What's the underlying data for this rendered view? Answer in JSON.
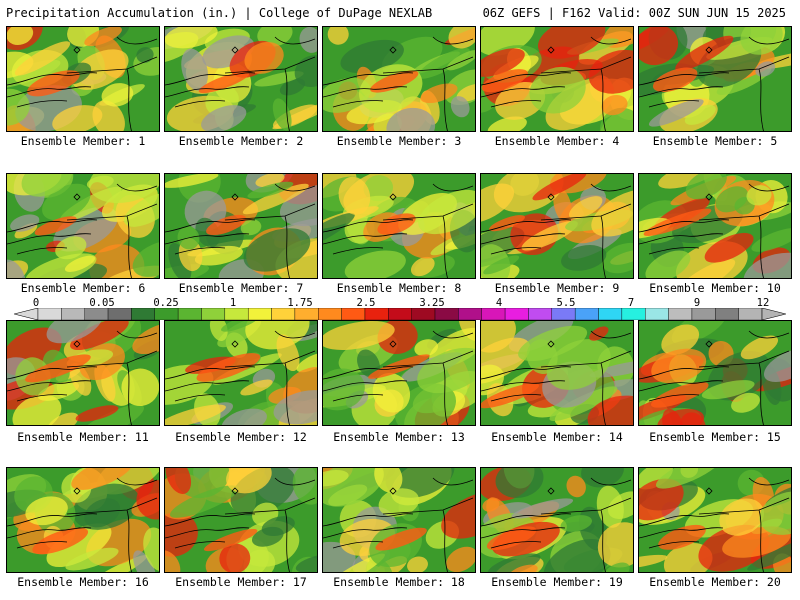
{
  "header": {
    "title_left": "Precipitation Accumulation (in.) | College of DuPage NEXLAB",
    "title_right": "06Z GEFS | F162 Valid: 00Z SUN JUN 15 2025"
  },
  "panels": [
    {
      "label": "Ensemble Member: 1"
    },
    {
      "label": "Ensemble Member: 2"
    },
    {
      "label": "Ensemble Member: 3"
    },
    {
      "label": "Ensemble Member: 4"
    },
    {
      "label": "Ensemble Member: 5"
    },
    {
      "label": "Ensemble Member: 6"
    },
    {
      "label": "Ensemble Member: 7"
    },
    {
      "label": "Ensemble Member: 8"
    },
    {
      "label": "Ensemble Member: 9"
    },
    {
      "label": "Ensemble Member: 10"
    },
    {
      "label": "Ensemble Member: 11"
    },
    {
      "label": "Ensemble Member: 12"
    },
    {
      "label": "Ensemble Member: 13"
    },
    {
      "label": "Ensemble Member: 14"
    },
    {
      "label": "Ensemble Member: 15"
    },
    {
      "label": "Ensemble Member: 16"
    },
    {
      "label": "Ensemble Member: 17"
    },
    {
      "label": "Ensemble Member: 18"
    },
    {
      "label": "Ensemble Member: 19"
    },
    {
      "label": "Ensemble Member: 20"
    }
  ],
  "colorbar": {
    "tick_labels": [
      "0",
      "0.05",
      "0.25",
      "1",
      "1.75",
      "2.5",
      "3.25",
      "4",
      "5.5",
      "7",
      "9",
      "12"
    ],
    "colors": [
      "#d9d9d9",
      "#b9b9b9",
      "#8c8c8c",
      "#6e6e6e",
      "#2f7a34",
      "#3c9b2b",
      "#5bb531",
      "#8fd13a",
      "#c6e83c",
      "#f2f23a",
      "#ffd23a",
      "#ffae2e",
      "#ff8a1e",
      "#ff5a14",
      "#e8220e",
      "#c40c1a",
      "#9e0a22",
      "#8a0a44",
      "#b0108a",
      "#d816b8",
      "#e81ee0",
      "#c04cf0",
      "#7a7af6",
      "#4aa2f8",
      "#2fd6f4",
      "#26f0e0",
      "#9ae6e6",
      "#bdbdbd",
      "#9a9a9a",
      "#808080",
      "#b4b4b4"
    ]
  }
}
